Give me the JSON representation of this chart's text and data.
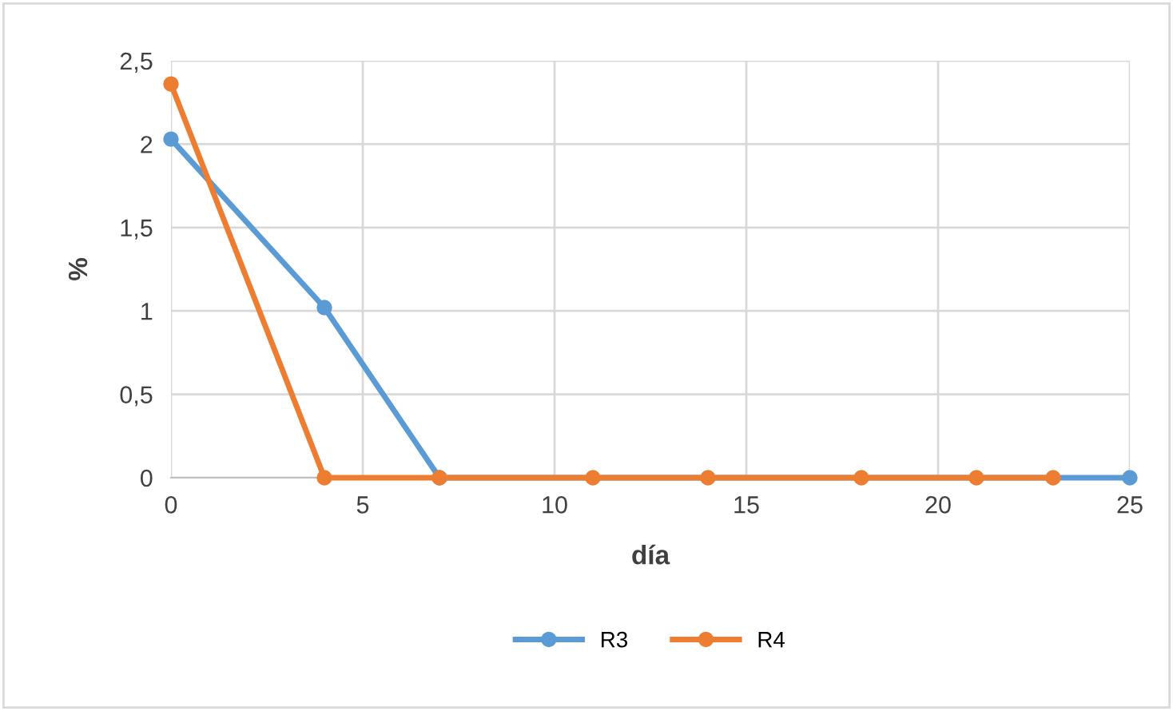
{
  "chart_data": {
    "type": "line",
    "xlabel": "día",
    "ylabel": "%",
    "xlim": [
      0,
      25
    ],
    "xticks": [
      0,
      5,
      10,
      15,
      20,
      25
    ],
    "ylim": [
      0,
      2.5
    ],
    "yticks": [
      0,
      {
        "value": 0.5,
        "label": "0,5"
      },
      1,
      {
        "value": 1.5,
        "label": "1,5"
      },
      2,
      {
        "value": 2.5,
        "label": "2,5"
      }
    ],
    "grid": true,
    "legend": "bottom",
    "marker": "circle",
    "line_style": "solid",
    "series": [
      {
        "name": "R3",
        "color": "#5b9bd5",
        "x": [
          0,
          4,
          7,
          25
        ],
        "values": [
          2.03,
          1.02,
          0,
          0
        ]
      },
      {
        "name": "R4",
        "color": "#ed7d31",
        "x": [
          0,
          4,
          7,
          11,
          14,
          18,
          21,
          23
        ],
        "values": [
          2.36,
          0,
          0,
          0,
          0,
          0,
          0,
          0
        ]
      }
    ]
  }
}
